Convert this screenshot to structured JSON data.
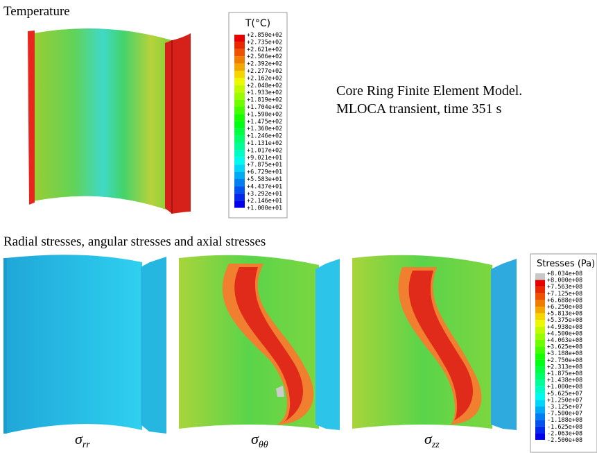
{
  "temperature_panel": {
    "title": "Temperature",
    "legend": {
      "title": "T(°C)",
      "labels": [
        "+2.850e+02",
        "+2.735e+02",
        "+2.621e+02",
        "+2.506e+02",
        "+2.392e+02",
        "+2.277e+02",
        "+2.162e+02",
        "+2.048e+02",
        "+1.933e+02",
        "+1.819e+02",
        "+1.704e+02",
        "+1.590e+02",
        "+1.475e+02",
        "+1.360e+02",
        "+1.246e+02",
        "+1.131e+02",
        "+1.017e+02",
        "+9.021e+01",
        "+7.875e+01",
        "+6.729e+01",
        "+5.583e+01",
        "+4.437e+01",
        "+3.292e+01",
        "+2.146e+01",
        "+1.000e+01"
      ]
    }
  },
  "description": [
    "Core Ring Finite Element Model.",
    "MLOCA transient, time 351 s"
  ],
  "stress_panel": {
    "title": "Radial stresses, angular stresses and  axial stresses",
    "legend": {
      "title": "Stresses (Pa)",
      "labels": [
        "+8.034e+08",
        "+8.000e+08",
        "+7.563e+08",
        "+7.125e+08",
        "+6.688e+08",
        "+6.250e+08",
        "+5.813e+08",
        "+5.375e+08",
        "+4.938e+08",
        "+4.500e+08",
        "+4.063e+08",
        "+3.625e+08",
        "+3.188e+08",
        "+2.750e+08",
        "+2.313e+08",
        "+1.875e+08",
        "+1.438e+08",
        "+1.000e+08",
        "+5.625e+07",
        "+1.250e+07",
        "-3.125e+07",
        "-7.500e+07",
        "-1.188e+08",
        "-1.625e+08",
        "-2.063e+08",
        "-2.500e+08"
      ]
    },
    "captions": [
      {
        "symbol": "σ",
        "subscript": "rr"
      },
      {
        "symbol": "σ",
        "subscript": "θθ"
      },
      {
        "symbol": "σ",
        "subscript": "zz"
      }
    ]
  }
}
